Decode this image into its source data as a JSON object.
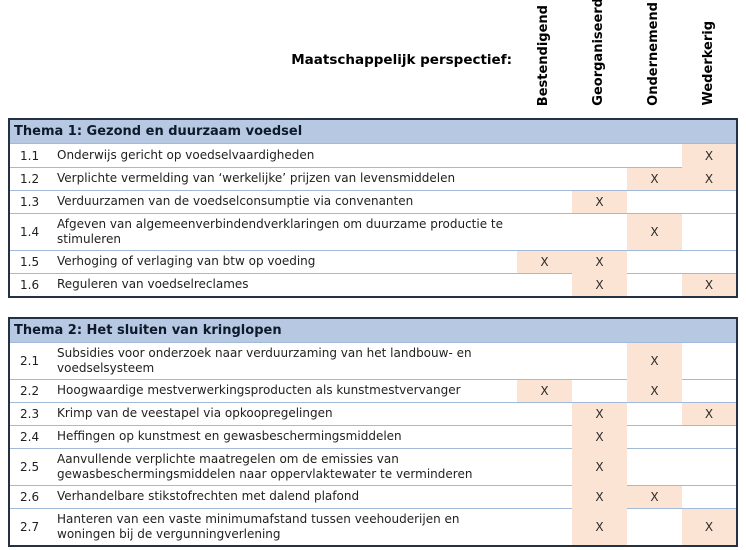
{
  "header": {
    "perspective_label": "Maatschappelijk perspectief:",
    "columns": [
      "Bestendigend",
      "Georganiseerd",
      "Ondernemend",
      "Wederkerig"
    ]
  },
  "mark_symbol": "X",
  "colors": {
    "theme_header_bg": "#B7C9E2",
    "highlight_cell": "#FBE4D3",
    "table_border": "#243142",
    "row_separator": "#A3B9D9"
  },
  "tables": [
    {
      "title": "Thema 1: Gezond en duurzaam voedsel",
      "rows": [
        {
          "nr": "1.1",
          "text": "Onderwijs gericht op voedselvaardigheden",
          "marks": [
            0,
            0,
            0,
            1
          ]
        },
        {
          "nr": "1.2",
          "text": "Verplichte vermelding van ‘werkelijke’ prijzen van levensmiddelen",
          "marks": [
            0,
            0,
            1,
            1
          ]
        },
        {
          "nr": "1.3",
          "text": "Verduurzamen van de voedselconsumptie via convenanten",
          "marks": [
            0,
            1,
            0,
            0
          ]
        },
        {
          "nr": "1.4",
          "text": "Afgeven van algemeenverbindendverklaringen om duurzame productie te stimuleren",
          "marks": [
            0,
            0,
            1,
            0
          ]
        },
        {
          "nr": "1.5",
          "text": "Verhoging of verlaging van btw op voeding",
          "marks": [
            1,
            1,
            0,
            0
          ]
        },
        {
          "nr": "1.6",
          "text": "Reguleren van voedselreclames",
          "marks": [
            0,
            1,
            0,
            1
          ]
        }
      ]
    },
    {
      "title": "Thema 2: Het sluiten van kringlopen",
      "rows": [
        {
          "nr": "2.1",
          "text": "Subsidies voor onderzoek naar verduurzaming van het landbouw- en voedselsysteem",
          "marks": [
            0,
            0,
            1,
            0
          ]
        },
        {
          "nr": "2.2",
          "text": "Hoogwaardige mestverwerkingsproducten als kunstmestvervanger",
          "marks": [
            1,
            0,
            1,
            0
          ]
        },
        {
          "nr": "2.3",
          "text": "Krimp van de veestapel via opkoopregelingen",
          "marks": [
            0,
            1,
            0,
            1
          ]
        },
        {
          "nr": "2.4",
          "text": "Heffingen op kunstmest en gewasbeschermingsmiddelen",
          "marks": [
            0,
            1,
            0,
            0
          ]
        },
        {
          "nr": "2.5",
          "text": "Aanvullende verplichte maatregelen om de emissies van gewasbeschermingsmiddelen naar oppervlaktewater te verminderen",
          "marks": [
            0,
            1,
            0,
            0
          ]
        },
        {
          "nr": "2.6",
          "text": "Verhandelbare stikstofrechten met dalend plafond",
          "marks": [
            0,
            1,
            1,
            0
          ]
        },
        {
          "nr": "2.7",
          "text": "Hanteren van een vaste minimumafstand tussen veehouderijen en woningen bij de vergunningverlening",
          "marks": [
            0,
            1,
            0,
            1
          ]
        }
      ]
    }
  ]
}
